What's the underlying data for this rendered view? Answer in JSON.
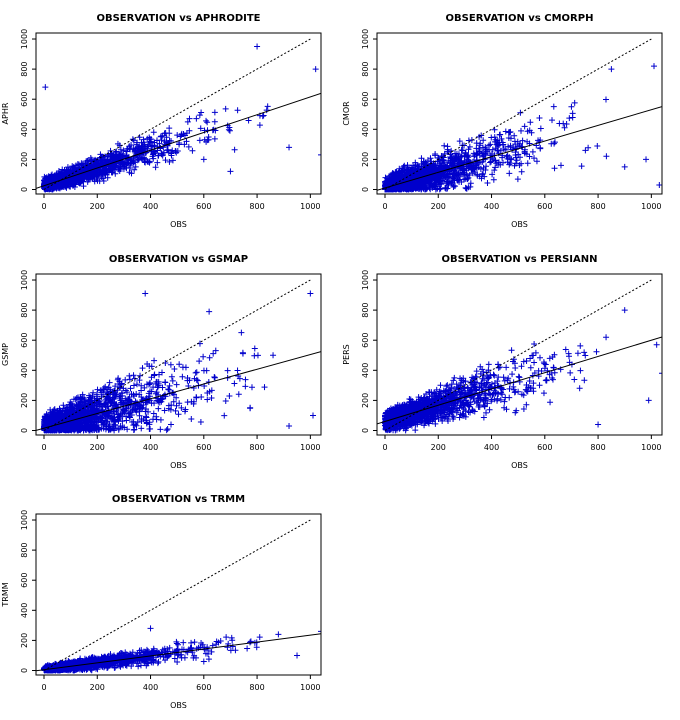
{
  "figure": {
    "background": "#ffffff",
    "point_color": "#0000cc",
    "line_color": "#000000"
  },
  "chart_data": [
    {
      "type": "scatter",
      "title": "OBSERVATION vs APHRODITE",
      "xlabel": "OBS",
      "ylabel": "APHR",
      "xlim": [
        -30,
        1040
      ],
      "ylim": [
        -30,
        1040
      ],
      "xticks": [
        0,
        200,
        400,
        600,
        800,
        1000
      ],
      "yticks": [
        0,
        200,
        400,
        600,
        800,
        1000
      ],
      "grid": false,
      "series_fit": {
        "intercept": 25,
        "slope": 0.59
      },
      "identity_line": [
        [
          0,
          0
        ],
        [
          1000,
          1000
        ]
      ],
      "cloud_spread": 70,
      "extreme_points": [
        [
          5,
          680
        ],
        [
          800,
          950
        ],
        [
          1020,
          800
        ],
        [
          920,
          280
        ],
        [
          1040,
          230
        ],
        [
          600,
          200
        ],
        [
          700,
          120
        ]
      ]
    },
    {
      "type": "scatter",
      "title": "OBSERVATION vs CMORPH",
      "xlabel": "OBS",
      "ylabel": "CMOR",
      "xlim": [
        -30,
        1040
      ],
      "ylim": [
        -30,
        1040
      ],
      "xticks": [
        0,
        200,
        400,
        600,
        800,
        1000
      ],
      "yticks": [
        0,
        200,
        400,
        600,
        800,
        1000
      ],
      "grid": false,
      "series_fit": {
        "intercept": 10,
        "slope": 0.52
      },
      "identity_line": [
        [
          0,
          0
        ],
        [
          1000,
          1000
        ]
      ],
      "cloud_spread": 110,
      "extreme_points": [
        [
          1010,
          820
        ],
        [
          850,
          800
        ],
        [
          1030,
          30
        ],
        [
          900,
          150
        ],
        [
          980,
          200
        ],
        [
          700,
          550
        ]
      ]
    },
    {
      "type": "scatter",
      "title": "OBSERVATION vs GSMAP",
      "xlabel": "OBS",
      "ylabel": "GSMP",
      "xlim": [
        -30,
        1040
      ],
      "ylim": [
        -30,
        1040
      ],
      "xticks": [
        0,
        200,
        400,
        600,
        800,
        1000
      ],
      "yticks": [
        0,
        200,
        400,
        600,
        800,
        1000
      ],
      "grid": false,
      "series_fit": {
        "intercept": 15,
        "slope": 0.49
      },
      "identity_line": [
        [
          0,
          0
        ],
        [
          1000,
          1000
        ]
      ],
      "cloud_spread": 140,
      "extreme_points": [
        [
          380,
          910
        ],
        [
          1000,
          910
        ],
        [
          620,
          790
        ],
        [
          1010,
          100
        ],
        [
          920,
          30
        ],
        [
          860,
          500
        ]
      ]
    },
    {
      "type": "scatter",
      "title": "OBSERVATION vs PERSIANN",
      "xlabel": "OBS",
      "ylabel": "PERS",
      "xlim": [
        -30,
        1040
      ],
      "ylim": [
        -30,
        1040
      ],
      "xticks": [
        0,
        200,
        400,
        600,
        800,
        1000
      ],
      "yticks": [
        0,
        200,
        400,
        600,
        800,
        1000
      ],
      "grid": false,
      "series_fit": {
        "intercept": 60,
        "slope": 0.54
      },
      "identity_line": [
        [
          0,
          0
        ],
        [
          1000,
          1000
        ]
      ],
      "cloud_spread": 100,
      "extreme_points": [
        [
          900,
          800
        ],
        [
          830,
          620
        ],
        [
          1020,
          570
        ],
        [
          990,
          200
        ],
        [
          800,
          40
        ],
        [
          1040,
          380
        ]
      ]
    },
    {
      "type": "scatter",
      "title": "OBSERVATION vs TRMM",
      "xlabel": "OBS",
      "ylabel": "TRMM",
      "xlim": [
        -30,
        1040
      ],
      "ylim": [
        -30,
        1040
      ],
      "xticks": [
        0,
        200,
        400,
        600,
        800,
        1000
      ],
      "yticks": [
        0,
        200,
        400,
        600,
        800,
        1000
      ],
      "grid": false,
      "series_fit": {
        "intercept": 5,
        "slope": 0.23
      },
      "identity_line": [
        [
          0,
          0
        ],
        [
          1000,
          1000
        ]
      ],
      "cloud_spread": 35,
      "extreme_points": [
        [
          400,
          280
        ],
        [
          1040,
          260
        ],
        [
          880,
          240
        ],
        [
          600,
          60
        ],
        [
          950,
          100
        ]
      ]
    }
  ]
}
